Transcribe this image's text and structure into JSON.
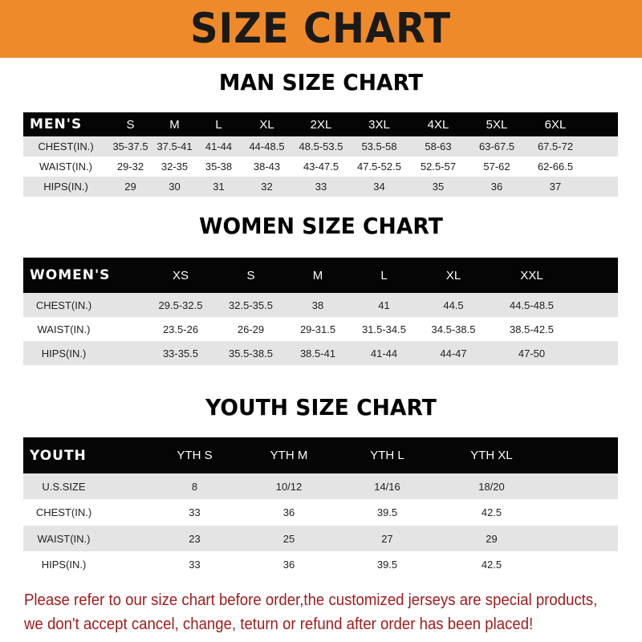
{
  "banner_title": "SIZE CHART",
  "colors": {
    "banner": "#ef8a2a",
    "header_row": "#050505",
    "stripe": "#e4e4e4",
    "note": "#9e1b1b"
  },
  "men": {
    "title": "MAN SIZE CHART",
    "header": "MEN'S",
    "sizes": [
      "S",
      "M",
      "L",
      "XL",
      "2XL",
      "3XL",
      "4XL",
      "5XL",
      "6XL"
    ],
    "rows": [
      {
        "label": "CHEST(IN.)",
        "values": [
          "35-37.5",
          "37.5-41",
          "41-44",
          "44-48.5",
          "48.5-53.5",
          "53.5-58",
          "58-63",
          "63-67.5",
          "67.5-72"
        ]
      },
      {
        "label": "WAIST(IN.)",
        "values": [
          "29-32",
          "32-35",
          "35-38",
          "38-43",
          "43-47.5",
          "47.5-52.5",
          "52.5-57",
          "57-62",
          "62-66.5"
        ]
      },
      {
        "label": "HIPS(IN.)",
        "values": [
          "29",
          "30",
          "31",
          "32",
          "33",
          "34",
          "35",
          "36",
          "37"
        ]
      }
    ]
  },
  "women": {
    "title": "WOMEN SIZE CHART",
    "header": "WOMEN'S",
    "sizes": [
      "XS",
      "S",
      "M",
      "L",
      "XL",
      "XXL"
    ],
    "rows": [
      {
        "label": "CHEST(IN.)",
        "values": [
          "29.5-32.5",
          "32.5-35.5",
          "38",
          "41",
          "44.5",
          "44.5-48.5"
        ]
      },
      {
        "label": "WAIST(IN.)",
        "values": [
          "23.5-26",
          "26-29",
          "29-31.5",
          "31.5-34.5",
          "34.5-38.5",
          "38.5-42.5"
        ]
      },
      {
        "label": "HIPS(IN.)",
        "values": [
          "33-35.5",
          "35.5-38.5",
          "38.5-41",
          "41-44",
          "44-47",
          "47-50"
        ]
      }
    ]
  },
  "youth": {
    "title": "YOUTH SIZE CHART",
    "header": "YOUTH",
    "sizes": [
      "YTH S",
      "YTH M",
      "YTH L",
      "YTH XL"
    ],
    "rows": [
      {
        "label": "U.S.SIZE",
        "values": [
          "8",
          "10/12",
          "14/16",
          "18/20"
        ]
      },
      {
        "label": "CHEST(IN.)",
        "values": [
          "33",
          "36",
          "39.5",
          "42.5"
        ]
      },
      {
        "label": "WAIST(IN.)",
        "values": [
          "23",
          "25",
          "27",
          "29"
        ]
      },
      {
        "label": "HIPS(IN.)",
        "values": [
          "33",
          "36",
          "39.5",
          "42.5"
        ]
      }
    ]
  },
  "note": {
    "line1": "Please refer to our size chart before order,the customized jerseys are special products,",
    "line2": "we don't accept cancel, change, teturn or refund after order has been placed!"
  }
}
